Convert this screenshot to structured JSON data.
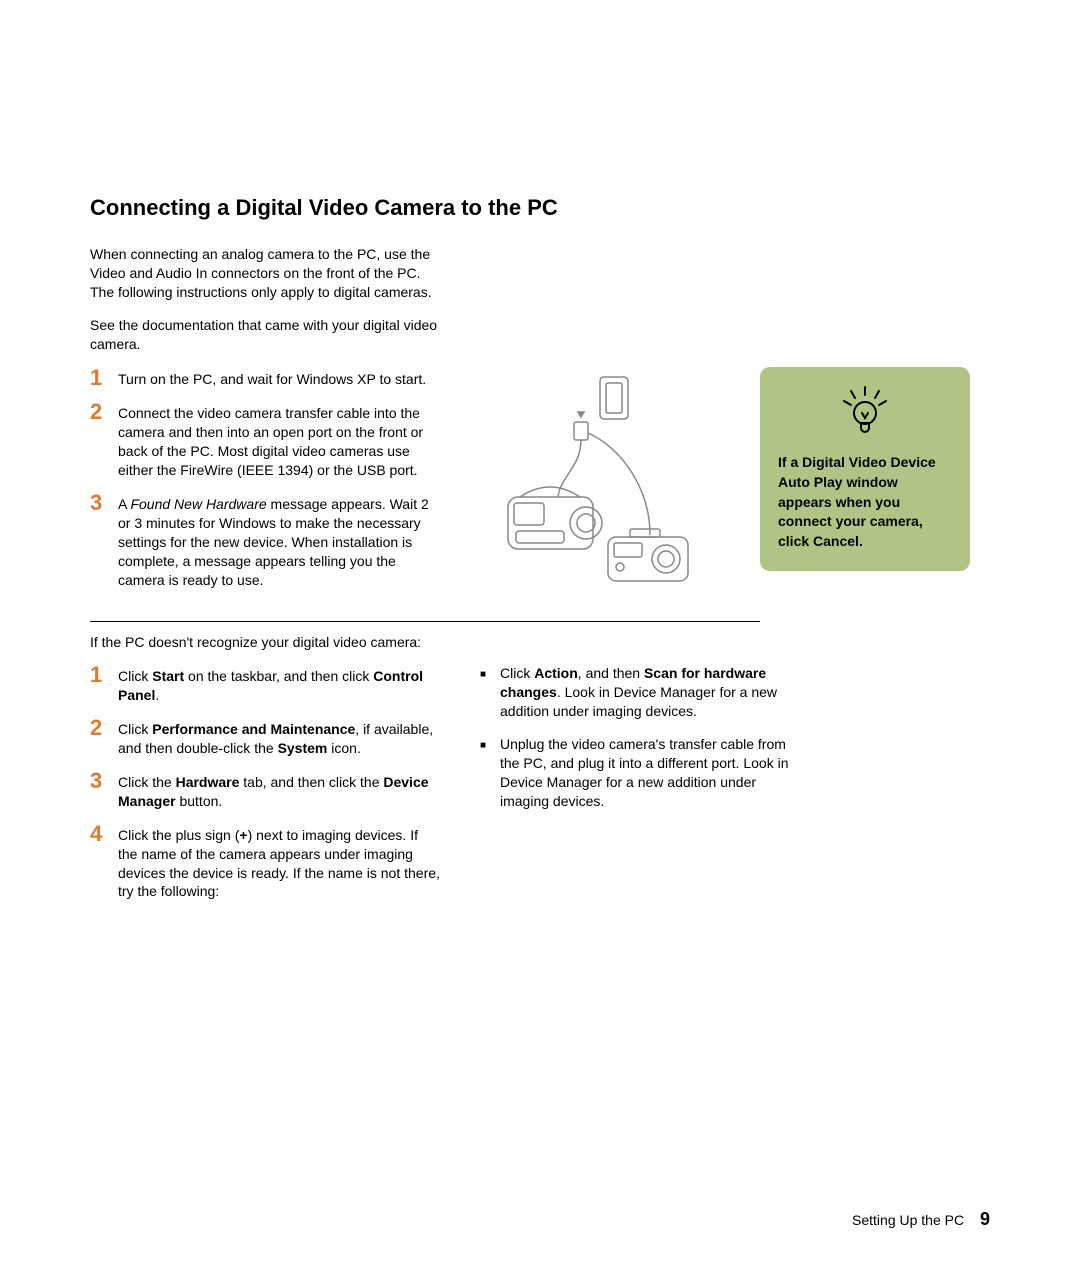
{
  "heading": "Connecting a Digital Video Camera to the PC",
  "intro": {
    "p1": "When connecting an analog camera to the PC, use the Video and Audio In connectors on the front of the PC. The following instructions only apply to digital cameras.",
    "p2": "See the documentation that came with your digital video camera."
  },
  "steps_a": [
    {
      "n": "1",
      "html": "Turn on the PC, and wait for Windows XP to start."
    },
    {
      "n": "2",
      "html": "Connect the video camera transfer cable into the camera and then into an open port on the front or back of the PC. Most digital video cameras use either the FireWire (IEEE 1394) or the USB port."
    },
    {
      "n": "3",
      "html": "A <i>Found New Hardware</i> message appears. Wait 2 or 3 minutes for Windows to make the necessary settings for the new device. When installation is complete, a message appears telling you the camera is ready to use."
    }
  ],
  "tip": {
    "bg": "#b0c585",
    "text_color": "#000000",
    "icon_stroke": "#000000",
    "text": "If a Digital Video Device Auto Play window appears when you connect your camera, click Cancel."
  },
  "trouble_intro": "If the PC doesn't recognize your digital video camera:",
  "steps_b": [
    {
      "n": "1",
      "html": "Click <b>Start</b> on the taskbar, and then click <b>Control Panel</b>."
    },
    {
      "n": "2",
      "html": "Click <b>Performance and Maintenance</b>, if available, and then double-click the <b>System</b> icon."
    },
    {
      "n": "3",
      "html": "Click the <b>Hardware</b> tab, and then click the <b>Device Manager</b> button."
    },
    {
      "n": "4",
      "html": "Click the plus sign (<b>+</b>) next to imaging devices. If the name of the camera appears under imaging devices the device is ready. If the name is not there, try the following:"
    }
  ],
  "bullets": [
    {
      "html": "Click <b>Action</b>, and then <b>Scan for hardware changes</b>. Look in Device Manager for a new addition under imaging devices."
    },
    {
      "html": "Unplug the video camera's transfer cable from the PC, and plug it into a different port. Look in Device Manager for a new addition under imaging devices."
    }
  ],
  "colors": {
    "step_num": "#e07b2e",
    "text": "#000000",
    "illus_stroke": "#888888"
  },
  "footer": {
    "section": "Setting Up the PC",
    "page": "9"
  }
}
